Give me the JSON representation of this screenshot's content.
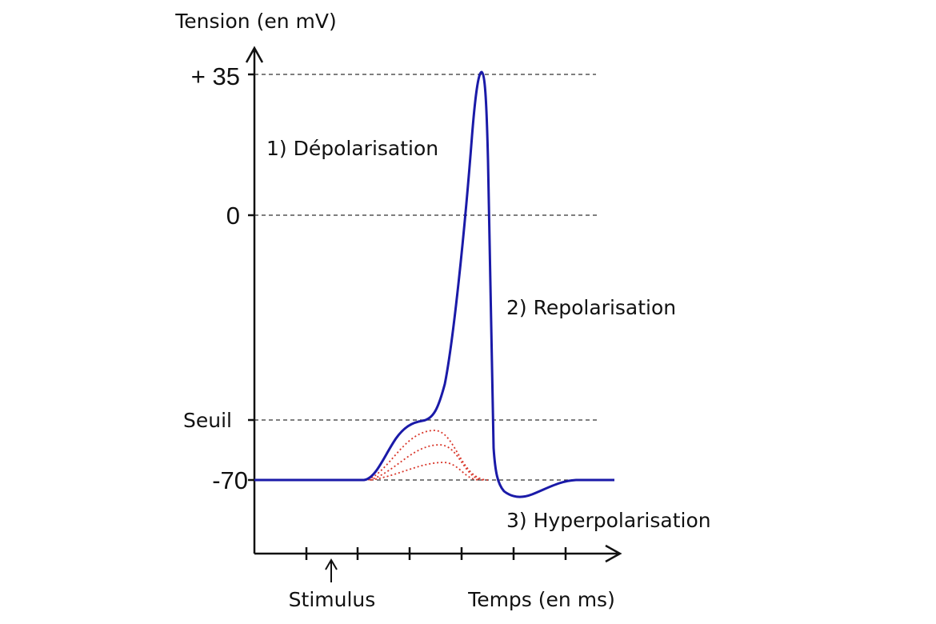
{
  "y_axis": {
    "title": "Tension (en mV)",
    "labels": [
      "+ 35",
      "0",
      "Seuil",
      "-70"
    ]
  },
  "x_axis": {
    "title": "Temps (en ms)",
    "stimulus": "Stimulus"
  },
  "phases": [
    "1) Dépolarisation",
    "2) Repolarisation",
    "3) Hyperpolarisation"
  ]
}
